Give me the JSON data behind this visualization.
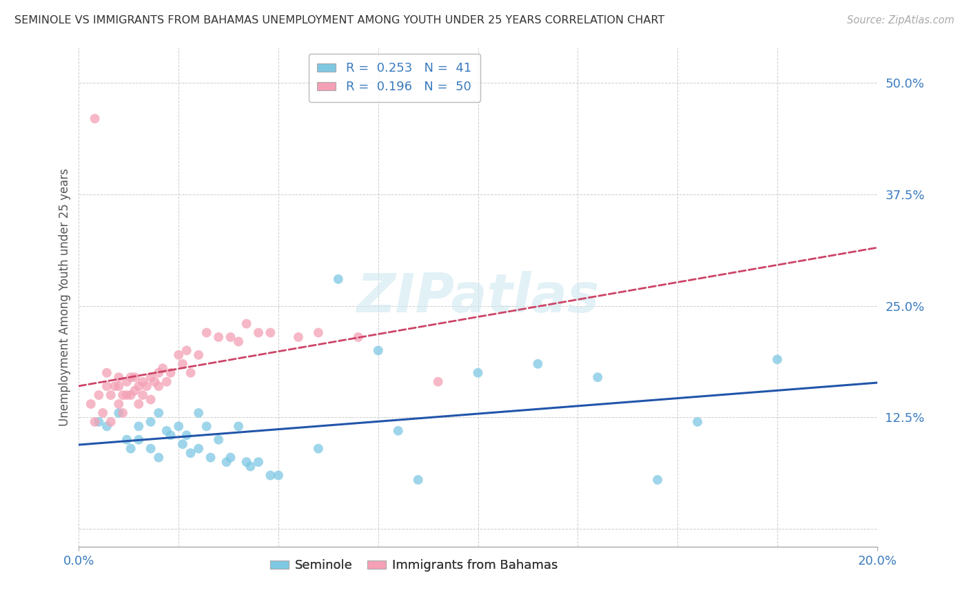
{
  "title": "SEMINOLE VS IMMIGRANTS FROM BAHAMAS UNEMPLOYMENT AMONG YOUTH UNDER 25 YEARS CORRELATION CHART",
  "source": "Source: ZipAtlas.com",
  "ylabel": "Unemployment Among Youth under 25 years",
  "xlim": [
    0.0,
    0.2
  ],
  "ylim": [
    -0.02,
    0.54
  ],
  "yticks": [
    0.0,
    0.125,
    0.25,
    0.375,
    0.5
  ],
  "ytick_labels": [
    "",
    "12.5%",
    "25.0%",
    "37.5%",
    "50.0%"
  ],
  "xtick_labels": [
    "0.0%",
    "20.0%"
  ],
  "legend_R1": "0.253",
  "legend_N1": "41",
  "legend_R2": "0.196",
  "legend_N2": "50",
  "color_blue": "#7ec8e3",
  "color_pink": "#f4a0b5",
  "trendline_blue": "#2255aa",
  "trendline_pink": "#cc4466",
  "seminole_x": [
    0.005,
    0.007,
    0.01,
    0.012,
    0.013,
    0.015,
    0.015,
    0.018,
    0.018,
    0.02,
    0.02,
    0.022,
    0.023,
    0.025,
    0.026,
    0.027,
    0.028,
    0.03,
    0.03,
    0.032,
    0.033,
    0.035,
    0.037,
    0.038,
    0.04,
    0.042,
    0.043,
    0.045,
    0.048,
    0.05,
    0.06,
    0.065,
    0.075,
    0.08,
    0.085,
    0.1,
    0.115,
    0.13,
    0.145,
    0.155,
    0.175
  ],
  "seminole_y": [
    0.12,
    0.115,
    0.13,
    0.1,
    0.09,
    0.115,
    0.1,
    0.12,
    0.09,
    0.13,
    0.08,
    0.11,
    0.105,
    0.115,
    0.095,
    0.105,
    0.085,
    0.13,
    0.09,
    0.115,
    0.08,
    0.1,
    0.075,
    0.08,
    0.115,
    0.075,
    0.07,
    0.075,
    0.06,
    0.06,
    0.09,
    0.28,
    0.2,
    0.11,
    0.055,
    0.175,
    0.185,
    0.17,
    0.055,
    0.12,
    0.19
  ],
  "bahamas_x": [
    0.003,
    0.004,
    0.005,
    0.006,
    0.007,
    0.007,
    0.008,
    0.008,
    0.009,
    0.01,
    0.01,
    0.01,
    0.011,
    0.011,
    0.012,
    0.012,
    0.013,
    0.013,
    0.014,
    0.014,
    0.015,
    0.015,
    0.016,
    0.016,
    0.017,
    0.018,
    0.018,
    0.019,
    0.02,
    0.02,
    0.021,
    0.022,
    0.023,
    0.025,
    0.026,
    0.027,
    0.028,
    0.03,
    0.032,
    0.035,
    0.038,
    0.04,
    0.042,
    0.045,
    0.048,
    0.055,
    0.06,
    0.07,
    0.09,
    0.004
  ],
  "bahamas_y": [
    0.14,
    0.12,
    0.15,
    0.13,
    0.16,
    0.175,
    0.15,
    0.12,
    0.16,
    0.17,
    0.16,
    0.14,
    0.15,
    0.13,
    0.165,
    0.15,
    0.17,
    0.15,
    0.155,
    0.17,
    0.16,
    0.14,
    0.165,
    0.15,
    0.16,
    0.17,
    0.145,
    0.165,
    0.175,
    0.16,
    0.18,
    0.165,
    0.175,
    0.195,
    0.185,
    0.2,
    0.175,
    0.195,
    0.22,
    0.215,
    0.215,
    0.21,
    0.23,
    0.22,
    0.22,
    0.215,
    0.22,
    0.215,
    0.165,
    0.46
  ]
}
